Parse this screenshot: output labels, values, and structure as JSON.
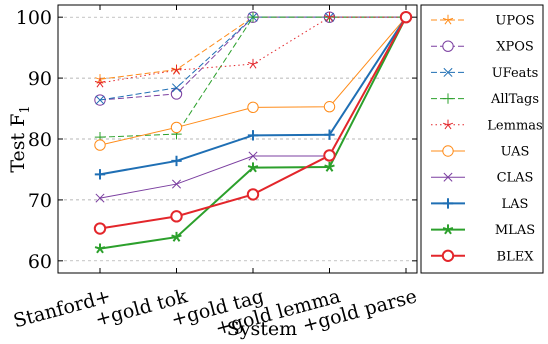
{
  "chart_data": {
    "type": "line",
    "xlabel": "System",
    "ylabel": "Test F",
    "ylabel_subscript": "1",
    "categories": [
      "Stanford+",
      "+gold tok",
      "+gold tag",
      "+gold lemma",
      "+gold parse"
    ],
    "ylim": [
      58,
      102
    ],
    "yticks": [
      60,
      70,
      80,
      90,
      100
    ],
    "grid": "horizontal dashed",
    "legend_position": "right, outside",
    "series": [
      {
        "name": "UPOS",
        "values": [
          89.8,
          91.4,
          100,
          100,
          100
        ],
        "color": "#ff8c1a",
        "marker": "star",
        "line": "dashed",
        "width": 1
      },
      {
        "name": "XPOS",
        "values": [
          86.4,
          87.4,
          100,
          100,
          100
        ],
        "color": "#7b3fa0",
        "marker": "circle",
        "line": "dashed",
        "width": 1
      },
      {
        "name": "UFeats",
        "values": [
          86.4,
          88.4,
          100,
          100,
          100
        ],
        "color": "#1f6fb4",
        "marker": "x",
        "line": "dashed",
        "width": 1
      },
      {
        "name": "AllTags",
        "values": [
          80.3,
          80.8,
          100,
          100,
          100
        ],
        "color": "#2ca02c",
        "marker": "plus",
        "line": "dashed",
        "width": 1
      },
      {
        "name": "Lemmas",
        "values": [
          89.2,
          91.3,
          92.3,
          100,
          100
        ],
        "color": "#e3262b",
        "marker": "star",
        "line": "dotted",
        "width": 1
      },
      {
        "name": "UAS",
        "values": [
          79.0,
          81.9,
          85.2,
          85.3,
          100
        ],
        "color": "#ff8c1a",
        "marker": "circle",
        "line": "solid",
        "width": 1
      },
      {
        "name": "CLAS",
        "values": [
          70.3,
          72.6,
          77.2,
          77.2,
          100
        ],
        "color": "#7b3fa0",
        "marker": "x",
        "line": "solid",
        "width": 1
      },
      {
        "name": "LAS",
        "values": [
          74.2,
          76.4,
          80.6,
          80.7,
          100
        ],
        "color": "#1f6fb4",
        "marker": "plus",
        "line": "solid",
        "width": 2
      },
      {
        "name": "MLAS",
        "values": [
          62.0,
          63.9,
          75.3,
          75.4,
          100
        ],
        "color": "#2ca02c",
        "marker": "star",
        "line": "solid",
        "width": 2
      },
      {
        "name": "BLEX",
        "values": [
          65.3,
          67.3,
          70.9,
          77.3,
          100
        ],
        "color": "#e3262b",
        "marker": "circle",
        "line": "solid",
        "width": 2
      }
    ]
  }
}
